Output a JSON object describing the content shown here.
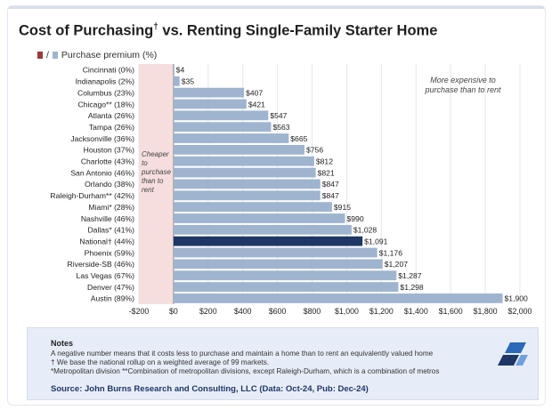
{
  "title": "Cost of Purchasing",
  "title_mark": "†",
  "title_rest": " vs. Renting Single-Family Starter Home",
  "legend": {
    "separator": "/",
    "label": "Purchase premium (%)",
    "colors": [
      "#9a3a3a",
      "#9fb4cf"
    ]
  },
  "chart_data": {
    "type": "bar",
    "orientation": "horizontal",
    "categories": [
      "Cincinnati (0%)",
      "Indianapolis (2%)",
      "Columbus (23%)",
      "Chicago** (18%)",
      "Atlanta (26%)",
      "Tampa (26%)",
      "Jacksonville (36%)",
      "Houston (37%)",
      "Charlotte (43%)",
      "San Antonio (46%)",
      "Orlando (38%)",
      "Raleigh-Durham** (42%)",
      "Miami* (28%)",
      "Nashville (46%)",
      "Dallas* (41%)",
      "National† (44%)",
      "Phoenix (59%)",
      "Riverside-SB (46%)",
      "Las Vegas (67%)",
      "Denver (47%)",
      "Austin (89%)"
    ],
    "values": [
      4,
      35,
      407,
      421,
      547,
      563,
      665,
      756,
      812,
      821,
      847,
      847,
      915,
      990,
      1028,
      1091,
      1176,
      1207,
      1287,
      1298,
      1900
    ],
    "value_labels": [
      "$4",
      "$35",
      "$407",
      "$421",
      "$547",
      "$563",
      "$665",
      "$756",
      "$812",
      "$821",
      "$847",
      "$847",
      "$915",
      "$990",
      "$1,028",
      "$1,091",
      "$1,176",
      "$1,207",
      "$1,287",
      "$1,298",
      "$1,900"
    ],
    "highlight_index": 15,
    "xlim": [
      -200,
      2000
    ],
    "xticks": [
      "-$200",
      "$0",
      "$200",
      "$400",
      "$600",
      "$800",
      "$1,000",
      "$1,200",
      "$1,400",
      "$1,600",
      "$1,800",
      "$2,000"
    ],
    "annotations": {
      "negative_region": [
        "Cheaper",
        "to",
        "purchase",
        "than to",
        "rent"
      ],
      "positive_region": [
        "More expensive to",
        "purchase than to rent"
      ]
    },
    "colors": {
      "bar": "#9fb4cf",
      "highlight": "#1f3766",
      "negative_band": "#f6dede"
    }
  },
  "notes": {
    "heading": "Notes",
    "lines": [
      "A negative number means that it costs less to purchase and maintain a home than to rent an equivalently valued home",
      "† We base the national rollup on a weighted average of 99 markets.",
      "*Metropolitan division **Combination of metropolitan divisions, except Raleigh-Durham, which is a combination of metros"
    ],
    "source": "Source: John Burns Research and Consulting, LLC (Data: Oct-24, Pub: Dec-24)"
  },
  "logo_icon": "john-burns-logo-icon"
}
